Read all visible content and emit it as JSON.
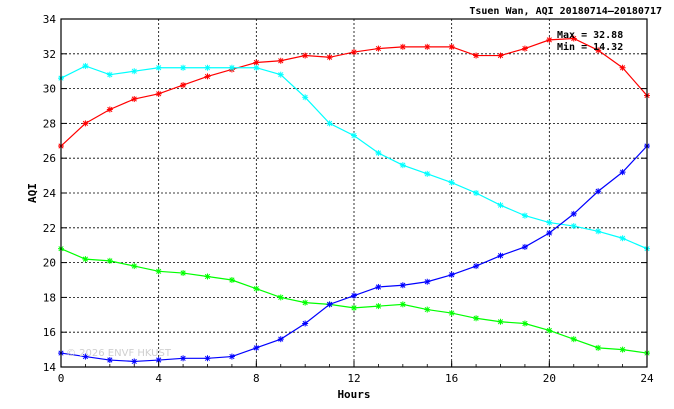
{
  "chart_data": {
    "type": "line",
    "title": "Tsuen Wan, AQI 20180714–20180717",
    "xlabel": "Hours",
    "ylabel": "AQI",
    "xlim": [
      0,
      24
    ],
    "ylim": [
      14,
      34
    ],
    "xticks": [
      0,
      4,
      8,
      12,
      16,
      20,
      24
    ],
    "yticks": [
      14,
      16,
      18,
      20,
      22,
      24,
      26,
      28,
      30,
      32,
      34
    ],
    "grid": true,
    "x": [
      0,
      1,
      2,
      3,
      4,
      5,
      6,
      7,
      8,
      9,
      10,
      11,
      12,
      13,
      14,
      15,
      16,
      17,
      18,
      19,
      20,
      21,
      22,
      23,
      24
    ],
    "annotations": [
      "Max = 32.88",
      "Min = 14.32"
    ],
    "watermark": "© 2026 ENVF HKUST",
    "series": [
      {
        "color": "#ff0000",
        "values": [
          26.7,
          28.0,
          28.8,
          29.4,
          29.7,
          30.2,
          30.7,
          31.1,
          31.5,
          31.6,
          31.9,
          31.8,
          32.1,
          32.3,
          32.4,
          32.4,
          32.4,
          31.9,
          31.9,
          32.3,
          32.8,
          32.88,
          32.2,
          31.2,
          29.6
        ]
      },
      {
        "color": "#00ffff",
        "values": [
          30.6,
          31.3,
          30.8,
          31.0,
          31.2,
          31.2,
          31.2,
          31.2,
          31.2,
          30.8,
          29.5,
          28.0,
          27.3,
          26.3,
          25.6,
          25.1,
          24.6,
          24.0,
          23.3,
          22.7,
          22.3,
          22.1,
          21.8,
          21.4,
          20.8
        ]
      },
      {
        "color": "#00ff00",
        "values": [
          20.8,
          20.2,
          20.1,
          19.8,
          19.5,
          19.4,
          19.2,
          19.0,
          18.5,
          18.0,
          17.7,
          17.6,
          17.4,
          17.5,
          17.6,
          17.3,
          17.1,
          16.8,
          16.6,
          16.5,
          16.1,
          15.6,
          15.1,
          15.0,
          14.8
        ]
      },
      {
        "color": "#0000ff",
        "values": [
          14.8,
          14.6,
          14.4,
          14.32,
          14.4,
          14.5,
          14.5,
          14.6,
          15.1,
          15.6,
          16.5,
          17.6,
          18.1,
          18.6,
          18.7,
          18.9,
          19.3,
          19.8,
          20.4,
          20.9,
          21.7,
          22.8,
          24.1,
          25.2,
          26.7
        ]
      }
    ]
  }
}
